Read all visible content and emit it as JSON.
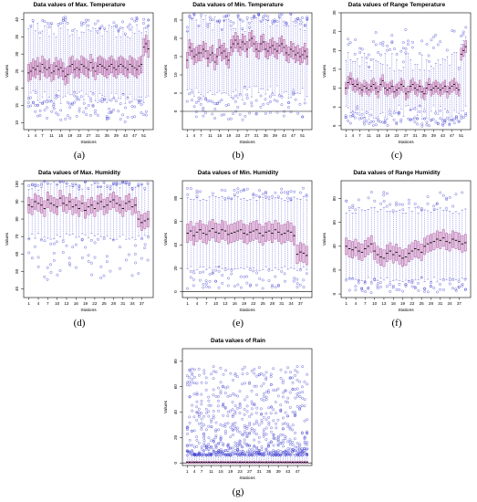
{
  "chart_data": [
    {
      "type": "box",
      "panel_label": "(a)",
      "title": "Data values of Max. Temperature",
      "xlabel": "Stations",
      "ylabel": "Values",
      "ylim": [
        8,
        42
      ],
      "yticks": [
        10,
        15,
        20,
        25,
        30,
        35,
        40
      ],
      "xticks": [
        "1",
        "4",
        "7",
        "11",
        "15",
        "19",
        "23",
        "27",
        "31",
        "35",
        "39",
        "43",
        "47",
        "51"
      ],
      "n_stations": 53,
      "medians": [
        24.5,
        25.0,
        26.0,
        25.5,
        26.5,
        25.0,
        27.0,
        26.0,
        25.5,
        26.0,
        24.5,
        25.0,
        26.5,
        25.5,
        26.0,
        25.0,
        23.5,
        24.0,
        26.5,
        27.0,
        25.5,
        26.0,
        25.5,
        27.0,
        26.5,
        26.0,
        25.5,
        27.5,
        26.0,
        25.0,
        26.5,
        27.0,
        26.5,
        26.0,
        25.5,
        26.5,
        27.0,
        26.0,
        25.5,
        26.5,
        27.0,
        26.5,
        26.0,
        25.5,
        27.0,
        26.5,
        26.0,
        25.5,
        26.5,
        27.0,
        32.0,
        33.0,
        31.5
      ],
      "iqr_half": 2.5,
      "whisker_low": 17.5,
      "whisker_high": 37.0
    },
    {
      "type": "box",
      "panel_label": "(b)",
      "title": "Data values of Min. Temperature",
      "xlabel": "Stations",
      "ylabel": "Values",
      "ylim": [
        -5,
        27
      ],
      "yticks": [
        0,
        5,
        10,
        15,
        20,
        25
      ],
      "xticks": [
        "1",
        "4",
        "7",
        "11",
        "15",
        "19",
        "23",
        "27",
        "31",
        "35",
        "39",
        "43",
        "47",
        "51"
      ],
      "n_stations": 53,
      "medians": [
        14.0,
        17.5,
        16.5,
        15.0,
        15.5,
        16.0,
        16.0,
        17.0,
        16.5,
        14.5,
        15.5,
        16.0,
        13.5,
        15.0,
        17.5,
        16.0,
        16.5,
        15.0,
        14.0,
        17.5,
        18.5,
        19.5,
        18.5,
        17.5,
        19.0,
        18.5,
        17.0,
        19.5,
        20.0,
        18.5,
        17.0,
        16.5,
        18.5,
        19.0,
        17.0,
        16.5,
        17.5,
        18.0,
        17.0,
        16.5,
        18.0,
        18.5,
        17.5,
        16.0,
        15.5,
        17.0,
        16.5,
        15.5,
        16.0,
        15.0,
        15.5,
        16.5,
        15.0
      ],
      "iqr_half": 2.2,
      "whisker_low": 5.0,
      "whisker_high": 24.0,
      "hline": 0
    },
    {
      "type": "box",
      "panel_label": "(c)",
      "title": "Data values of Range Temperature",
      "xlabel": "Stations",
      "ylabel": "Values",
      "ylim": [
        -1,
        30
      ],
      "yticks": [
        0,
        5,
        10,
        15,
        20,
        25,
        30
      ],
      "xticks": [
        "1",
        "4",
        "7",
        "11",
        "15",
        "19",
        "23",
        "27",
        "31",
        "35",
        "39",
        "43",
        "47",
        "51"
      ],
      "n_stations": 53,
      "medians": [
        10.0,
        11.5,
        12.5,
        11.0,
        10.5,
        11.0,
        10.0,
        9.5,
        10.5,
        10.0,
        9.5,
        10.5,
        11.0,
        10.0,
        9.0,
        11.0,
        12.0,
        10.0,
        9.5,
        10.0,
        10.5,
        9.0,
        9.5,
        10.0,
        11.0,
        10.5,
        8.5,
        9.0,
        10.5,
        11.0,
        10.0,
        9.5,
        10.5,
        9.0,
        8.5,
        10.0,
        11.0,
        9.5,
        10.0,
        10.5,
        10.0,
        9.5,
        10.0,
        10.5,
        9.0,
        10.0,
        10.5,
        11.0,
        10.0,
        9.5,
        19.0,
        20.0,
        21.0
      ],
      "iqr_half": 1.6,
      "whisker_low": 3.5,
      "whisker_high": 17.0
    },
    {
      "type": "box",
      "panel_label": "(d)",
      "title": "Data values of Max. Humidity",
      "xlabel": "Stations",
      "ylabel": "Values",
      "ylim": [
        35,
        102
      ],
      "yticks": [
        40,
        50,
        60,
        70,
        80,
        90,
        100
      ],
      "xticks": [
        "1",
        "4",
        "7",
        "10",
        "13",
        "16",
        "19",
        "22",
        "25",
        "28",
        "31",
        "34",
        "37"
      ],
      "n_stations": 39,
      "medians": [
        88,
        87,
        90,
        89,
        88,
        86,
        91,
        89,
        88,
        87,
        92,
        89,
        88,
        90,
        87,
        88,
        86,
        89,
        85,
        87,
        88,
        86,
        89,
        90,
        87,
        88,
        90,
        91,
        89,
        88,
        86,
        89,
        90,
        87,
        88,
        80,
        78,
        79,
        80
      ],
      "iqr_half": 4.5,
      "whisker_low": 70,
      "whisker_high": 99
    },
    {
      "type": "box",
      "panel_label": "(e)",
      "title": "Data values of Min. Humidity",
      "xlabel": "Stations",
      "ylabel": "Values",
      "ylim": [
        -5,
        95
      ],
      "yticks": [
        0,
        20,
        40,
        60,
        80
      ],
      "xticks": [
        "1",
        "4",
        "7",
        "10",
        "13",
        "16",
        "19",
        "22",
        "25",
        "28",
        "31",
        "34",
        "37"
      ],
      "n_stations": 39,
      "medians": [
        50,
        52,
        48,
        51,
        53,
        50,
        49,
        52,
        54,
        51,
        50,
        53,
        52,
        49,
        50,
        51,
        52,
        53,
        50,
        49,
        51,
        52,
        53,
        50,
        48,
        51,
        52,
        50,
        53,
        51,
        49,
        50,
        52,
        51,
        48,
        32,
        34,
        33,
        31
      ],
      "iqr_half": 8,
      "whisker_low": 20,
      "whisker_high": 80,
      "hline": 0
    },
    {
      "type": "box",
      "panel_label": "(f)",
      "title": "Data values of Range Humidity",
      "xlabel": "Stations",
      "ylabel": "Values",
      "ylim": [
        -3,
        95
      ],
      "yticks": [
        0,
        20,
        40,
        60,
        80
      ],
      "xticks": [
        "1",
        "4",
        "7",
        "10",
        "13",
        "16",
        "19",
        "22",
        "25",
        "28",
        "31",
        "34",
        "37"
      ],
      "n_stations": 39,
      "medians": [
        40,
        38,
        37,
        39,
        36,
        35,
        38,
        40,
        42,
        36,
        33,
        31,
        30,
        34,
        36,
        33,
        35,
        32,
        30,
        31,
        34,
        36,
        38,
        37,
        35,
        40,
        42,
        43,
        44,
        46,
        45,
        47,
        44,
        43,
        46,
        45,
        44,
        42,
        43
      ],
      "iqr_half": 7,
      "whisker_low": 12,
      "whisker_high": 70
    },
    {
      "type": "box",
      "panel_label": "(g)",
      "title": "Data values of Rain",
      "xlabel": "Stations",
      "ylabel": "Values",
      "ylim": [
        -2,
        90
      ],
      "yticks": [
        0,
        20,
        40,
        60,
        80
      ],
      "xticks": [
        "1",
        "4",
        "7",
        "11",
        "15",
        "19",
        "23",
        "27",
        "31",
        "35",
        "39",
        "43",
        "47"
      ],
      "n_stations": 51,
      "medians": [
        0.5,
        0.5,
        0.5,
        0.5,
        0.5,
        0.5,
        0.5,
        0.5,
        0.5,
        0.5,
        0.5,
        0.5,
        0.5,
        0.5,
        0.5,
        0.5,
        0.5,
        0.5,
        0.5,
        0.5,
        0.5,
        0.5,
        0.5,
        0.5,
        0.5,
        0.5,
        0.5,
        0.5,
        0.5,
        0.5,
        0.5,
        0.5,
        0.5,
        0.5,
        0.5,
        0.5,
        0.5,
        0.5,
        0.5,
        0.5,
        0.5,
        0.5,
        0.5,
        0.5,
        0.5,
        0.5,
        0.5,
        0.5,
        0.5,
        0.5,
        0.5
      ],
      "iqr_half": 1,
      "whisker_low": 0,
      "whisker_high": 6,
      "hline": 0
    }
  ],
  "colors": {
    "box_fill": "#e8bfe6",
    "box_stroke": "#8a3a7c",
    "median": "#000000",
    "whisker": "#4b4bd6",
    "outlier": "#3333cc",
    "axis": "#000000"
  }
}
